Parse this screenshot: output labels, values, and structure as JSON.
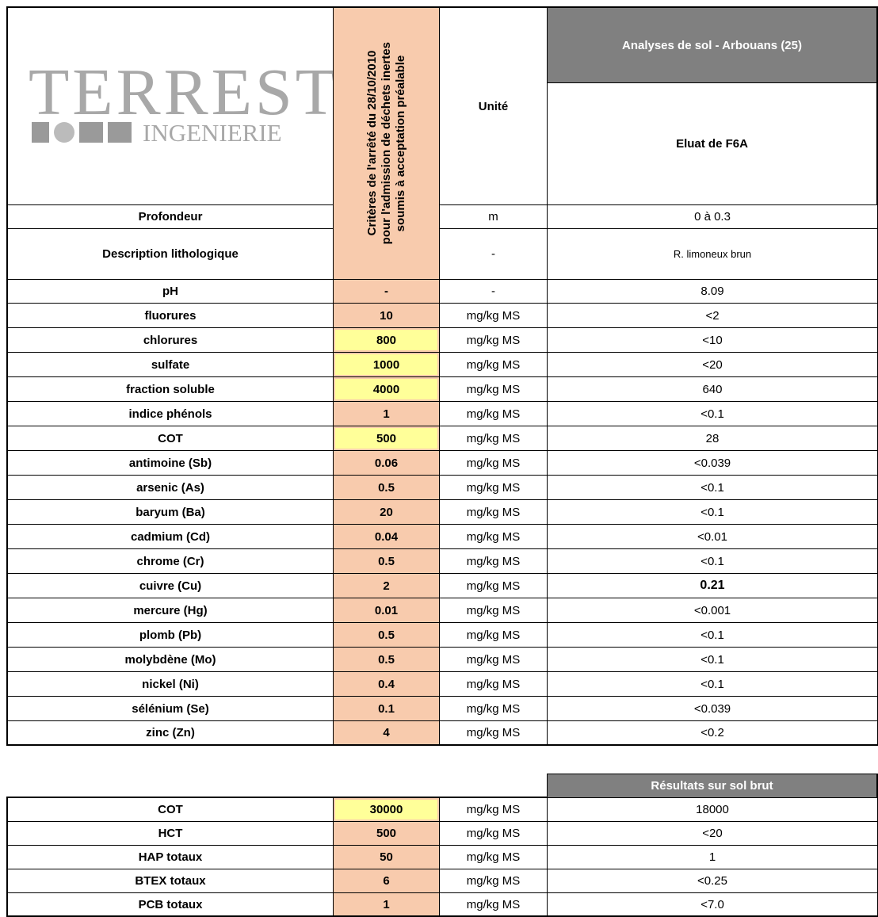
{
  "logo": {
    "name": "TERREST",
    "sub": "INGENIERIE"
  },
  "header": {
    "criteria": [
      "Critères de l'arrêté du 28/10/2010",
      "pour l'admission de déchets inertes",
      "soumis à acceptation préalable"
    ],
    "unit": "Unité",
    "site": "Analyses de sol - Arbouans (25)",
    "sample": "Eluat de F6A"
  },
  "info_rows": [
    {
      "label": "Profondeur",
      "unit": "m",
      "value": "0 à 0.3"
    },
    {
      "label": "Description lithologique",
      "unit": "-",
      "value": "R. limoneux brun"
    }
  ],
  "rows": [
    {
      "label": "pH",
      "criterion": "-",
      "unit": "-",
      "value": "8.09",
      "fill": "#f8cbad"
    },
    {
      "label": "fluorures",
      "criterion": "10",
      "unit": "mg/kg MS",
      "value": "<2",
      "fill": "#f8cbad"
    },
    {
      "label": "chlorures",
      "criterion": "800",
      "unit": "mg/kg MS",
      "value": "<10",
      "fill": "#ffff99"
    },
    {
      "label": "sulfate",
      "criterion": "1000",
      "unit": "mg/kg MS",
      "value": "<20",
      "fill": "#ffff99"
    },
    {
      "label": "fraction soluble",
      "criterion": "4000",
      "unit": "mg/kg MS",
      "value": "640",
      "fill": "#ffff99"
    },
    {
      "label": "indice phénols",
      "criterion": "1",
      "unit": "mg/kg MS",
      "value": "<0.1",
      "fill": "#f8cbad"
    },
    {
      "label": "COT",
      "criterion": "500",
      "unit": "mg/kg MS",
      "value": "28",
      "fill": "#ffff99"
    },
    {
      "label": "antimoine (Sb)",
      "criterion": "0.06",
      "unit": "mg/kg MS",
      "value": "<0.039",
      "fill": "#f8cbad"
    },
    {
      "label": "arsenic (As)",
      "criterion": "0.5",
      "unit": "mg/kg MS",
      "value": "<0.1",
      "fill": "#f8cbad"
    },
    {
      "label": "baryum (Ba)",
      "criterion": "20",
      "unit": "mg/kg MS",
      "value": "<0.1",
      "fill": "#f8cbad"
    },
    {
      "label": "cadmium (Cd)",
      "criterion": "0.04",
      "unit": "mg/kg MS",
      "value": "<0.01",
      "fill": "#f8cbad"
    },
    {
      "label": "chrome (Cr)",
      "criterion": "0.5",
      "unit": "mg/kg MS",
      "value": "<0.1",
      "fill": "#f8cbad"
    },
    {
      "label": "cuivre (Cu)",
      "criterion": "2",
      "unit": "mg/kg MS",
      "value": "0.21",
      "fill": "#f8cbad",
      "bold": true
    },
    {
      "label": "mercure (Hg)",
      "criterion": "0.01",
      "unit": "mg/kg MS",
      "value": "<0.001",
      "fill": "#f8cbad"
    },
    {
      "label": "plomb (Pb)",
      "criterion": "0.5",
      "unit": "mg/kg MS",
      "value": "<0.1",
      "fill": "#f8cbad"
    },
    {
      "label": "molybdène (Mo)",
      "criterion": "0.5",
      "unit": "mg/kg MS",
      "value": "<0.1",
      "fill": "#f8cbad"
    },
    {
      "label": "nickel (Ni)",
      "criterion": "0.4",
      "unit": "mg/kg MS",
      "value": "<0.1",
      "fill": "#f8cbad"
    },
    {
      "label": "sélénium (Se)",
      "criterion": "0.1",
      "unit": "mg/kg MS",
      "value": "<0.039",
      "fill": "#f8cbad"
    },
    {
      "label": "zinc (Zn)",
      "criterion": "4",
      "unit": "mg/kg MS",
      "value": "<0.2",
      "fill": "#f8cbad"
    }
  ],
  "brut": {
    "header": "Résultats sur sol brut",
    "rows": [
      {
        "label": "COT",
        "criterion": "30000",
        "unit": "mg/kg MS",
        "value": "18000",
        "fill": "#ffff99"
      },
      {
        "label": "HCT",
        "criterion": "500",
        "unit": "mg/kg MS",
        "value": "<20",
        "fill": "#f8cbad"
      },
      {
        "label": "HAP totaux",
        "criterion": "50",
        "unit": "mg/kg MS",
        "value": "1",
        "fill": "#f8cbad"
      },
      {
        "label": "BTEX totaux",
        "criterion": "6",
        "unit": "mg/kg MS",
        "value": "<0.25",
        "fill": "#f8cbad"
      },
      {
        "label": "PCB totaux",
        "criterion": "1",
        "unit": "mg/kg MS",
        "value": "<7.0",
        "fill": "#f8cbad"
      }
    ]
  }
}
